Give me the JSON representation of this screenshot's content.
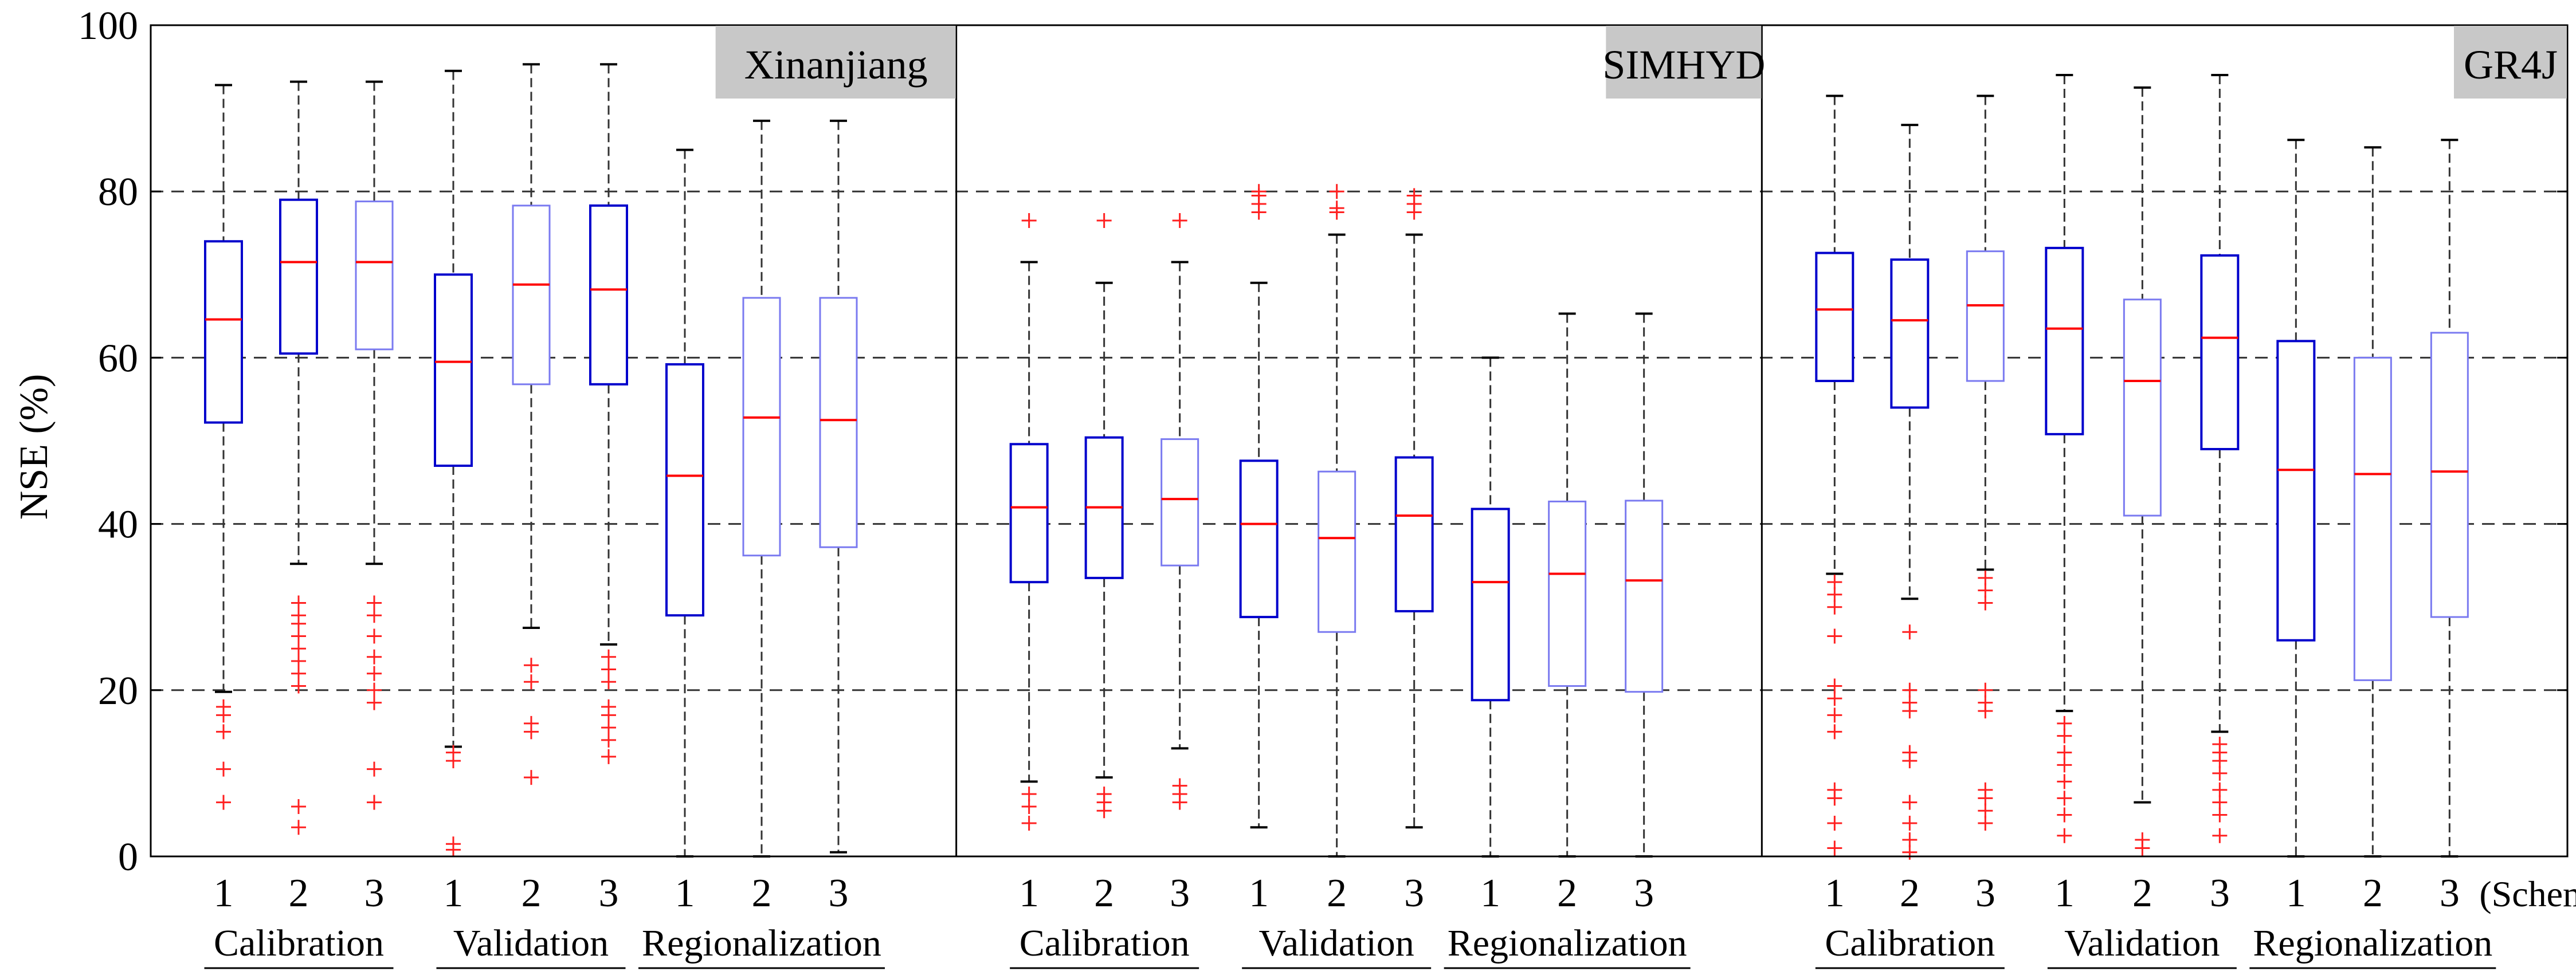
{
  "chart_data": {
    "type": "boxplot",
    "ylabel": "NSE (%)",
    "ylim": [
      0,
      100
    ],
    "yticks": [
      0,
      20,
      40,
      60,
      80,
      100
    ],
    "grid_lines": [
      20,
      40,
      60,
      80
    ],
    "scheme_suffix": "(Scheme)",
    "colors": {
      "box_dark": "#0000cc",
      "box_light": "#7a7af0",
      "median": "#ff0000",
      "outlier": "#ff2020",
      "whisker": "#000000",
      "label_bg": "#c8c8c8"
    },
    "panels": [
      {
        "model": "Xinanjiang",
        "groups": [
          {
            "period": "Calibration",
            "boxes": [
              {
                "scheme": "1",
                "q1": 52.2,
                "median": 64.6,
                "q3": 74.0,
                "whisker_low": 19.8,
                "whisker_high": 92.8,
                "outliers": [
                  6.5,
                  10.5,
                  15.0,
                  17.0,
                  18.0
                ]
              },
              {
                "scheme": "2",
                "q1": 60.5,
                "median": 71.5,
                "q3": 79.0,
                "whisker_low": 35.2,
                "whisker_high": 93.2,
                "outliers": [
                  3.5,
                  6.0,
                  20.5,
                  22.0,
                  23.5,
                  25.0,
                  26.5,
                  28.0,
                  29.0,
                  30.5
                ]
              },
              {
                "scheme": "3",
                "q1": 61.0,
                "median": 71.5,
                "q3": 78.8,
                "whisker_low": 35.2,
                "whisker_high": 93.2,
                "outliers": [
                  6.5,
                  10.5,
                  18.5,
                  20.0,
                  22.0,
                  24.0,
                  26.5,
                  29.0,
                  30.5
                ]
              }
            ]
          },
          {
            "period": "Validation",
            "boxes": [
              {
                "scheme": "1",
                "q1": 47.0,
                "median": 59.5,
                "q3": 70.0,
                "whisker_low": 13.2,
                "whisker_high": 94.5,
                "outliers": [
                  0.8,
                  1.5,
                  11.5,
                  12.5
                ]
              },
              {
                "scheme": "2",
                "q1": 56.8,
                "median": 68.8,
                "q3": 78.3,
                "whisker_low": 27.5,
                "whisker_high": 95.3,
                "outliers": [
                  9.5,
                  15.0,
                  16.0,
                  21.0,
                  23.0
                ]
              },
              {
                "scheme": "3",
                "q1": 56.8,
                "median": 68.2,
                "q3": 78.3,
                "whisker_low": 25.5,
                "whisker_high": 95.3,
                "outliers": [
                  12.0,
                  14.0,
                  15.5,
                  17.0,
                  18.0,
                  21.0,
                  22.5,
                  24.0
                ]
              }
            ]
          },
          {
            "period": "Regionalization",
            "boxes": [
              {
                "scheme": "1",
                "q1": 29.0,
                "median": 45.8,
                "q3": 59.2,
                "whisker_low": 0.0,
                "whisker_high": 85.0,
                "outliers": []
              },
              {
                "scheme": "2",
                "q1": 36.2,
                "median": 52.8,
                "q3": 67.2,
                "whisker_low": 0.0,
                "whisker_high": 88.5,
                "outliers": []
              },
              {
                "scheme": "3",
                "q1": 37.2,
                "median": 52.5,
                "q3": 67.2,
                "whisker_low": 0.5,
                "whisker_high": 88.5,
                "outliers": []
              }
            ]
          }
        ]
      },
      {
        "model": "SIMHYD",
        "groups": [
          {
            "period": "Calibration",
            "boxes": [
              {
                "scheme": "1",
                "q1": 33.0,
                "median": 42.0,
                "q3": 49.6,
                "whisker_low": 9.0,
                "whisker_high": 71.5,
                "outliers": [
                  4.0,
                  6.0,
                  7.5,
                  76.5
                ]
              },
              {
                "scheme": "2",
                "q1": 33.5,
                "median": 42.0,
                "q3": 50.4,
                "whisker_low": 9.5,
                "whisker_high": 69.0,
                "outliers": [
                  5.5,
                  6.5,
                  7.5,
                  76.5
                ]
              },
              {
                "scheme": "3",
                "q1": 35.0,
                "median": 43.0,
                "q3": 50.2,
                "whisker_low": 13.0,
                "whisker_high": 71.5,
                "outliers": [
                  6.5,
                  7.5,
                  8.5,
                  76.5
                ]
              }
            ]
          },
          {
            "period": "Validation",
            "boxes": [
              {
                "scheme": "1",
                "q1": 28.8,
                "median": 40.0,
                "q3": 47.6,
                "whisker_low": 3.5,
                "whisker_high": 69.0,
                "outliers": [
                  77.5,
                  78.5,
                  79.5,
                  80.0
                ]
              },
              {
                "scheme": "2",
                "q1": 27.0,
                "median": 38.3,
                "q3": 46.3,
                "whisker_low": 0.0,
                "whisker_high": 74.8,
                "outliers": [
                  77.5,
                  78.0,
                  80.0
                ]
              },
              {
                "scheme": "3",
                "q1": 29.5,
                "median": 41.0,
                "q3": 48.0,
                "whisker_low": 3.5,
                "whisker_high": 74.8,
                "outliers": [
                  77.5,
                  78.5,
                  79.5
                ]
              }
            ]
          },
          {
            "period": "Regionalization",
            "boxes": [
              {
                "scheme": "1",
                "q1": 18.8,
                "median": 33.0,
                "q3": 41.8,
                "whisker_low": 0.0,
                "whisker_high": 60.0,
                "outliers": []
              },
              {
                "scheme": "2",
                "q1": 20.5,
                "median": 34.0,
                "q3": 42.7,
                "whisker_low": 0.0,
                "whisker_high": 65.3,
                "outliers": []
              },
              {
                "scheme": "3",
                "q1": 19.8,
                "median": 33.2,
                "q3": 42.8,
                "whisker_low": 0.0,
                "whisker_high": 65.3,
                "outliers": []
              }
            ]
          }
        ]
      },
      {
        "model": "GR4J",
        "groups": [
          {
            "period": "Calibration",
            "boxes": [
              {
                "scheme": "1",
                "q1": 57.2,
                "median": 65.8,
                "q3": 72.6,
                "whisker_low": 34.0,
                "whisker_high": 91.5,
                "outliers": [
                  1.0,
                  4.0,
                  7.0,
                  8.0,
                  15.0,
                  17.0,
                  19.0,
                  20.5,
                  26.5,
                  30.0,
                  31.5,
                  33.0
                ]
              },
              {
                "scheme": "2",
                "q1": 54.0,
                "median": 64.5,
                "q3": 71.8,
                "whisker_low": 31.0,
                "whisker_high": 88.0,
                "outliers": [
                  0.5,
                  2.0,
                  4.0,
                  6.5,
                  11.5,
                  12.5,
                  17.5,
                  18.5,
                  20.0,
                  27.0
                ]
              },
              {
                "scheme": "3",
                "q1": 57.2,
                "median": 66.3,
                "q3": 72.8,
                "whisker_low": 34.5,
                "whisker_high": 91.5,
                "outliers": [
                  4.0,
                  5.5,
                  7.0,
                  8.0,
                  17.5,
                  18.5,
                  20.0,
                  30.5,
                  32.0,
                  33.5
                ]
              }
            ]
          },
          {
            "period": "Validation",
            "boxes": [
              {
                "scheme": "1",
                "q1": 50.8,
                "median": 63.5,
                "q3": 73.2,
                "whisker_low": 17.5,
                "whisker_high": 94.0,
                "outliers": [
                  2.5,
                  5.0,
                  7.0,
                  9.0,
                  11.0,
                  12.5,
                  14.5,
                  16.0
                ]
              },
              {
                "scheme": "2",
                "q1": 41.0,
                "median": 57.2,
                "q3": 67.0,
                "whisker_low": 6.5,
                "whisker_high": 92.5,
                "outliers": [
                  1.0,
                  2.0
                ]
              },
              {
                "scheme": "3",
                "q1": 49.0,
                "median": 62.4,
                "q3": 72.3,
                "whisker_low": 15.0,
                "whisker_high": 94.0,
                "outliers": [
                  2.5,
                  5.0,
                  6.5,
                  8.0,
                  10.0,
                  11.5,
                  12.5,
                  13.5
                ]
              }
            ]
          },
          {
            "period": "Regionalization",
            "boxes": [
              {
                "scheme": "1",
                "q1": 26.0,
                "median": 46.5,
                "q3": 62.0,
                "whisker_low": 0.0,
                "whisker_high": 86.2,
                "outliers": []
              },
              {
                "scheme": "2",
                "q1": 21.2,
                "median": 46.0,
                "q3": 60.0,
                "whisker_low": 0.0,
                "whisker_high": 85.3,
                "outliers": []
              },
              {
                "scheme": "3",
                "q1": 28.8,
                "median": 46.3,
                "q3": 63.0,
                "whisker_low": 0.0,
                "whisker_high": 86.2,
                "outliers": []
              }
            ]
          }
        ]
      }
    ]
  }
}
